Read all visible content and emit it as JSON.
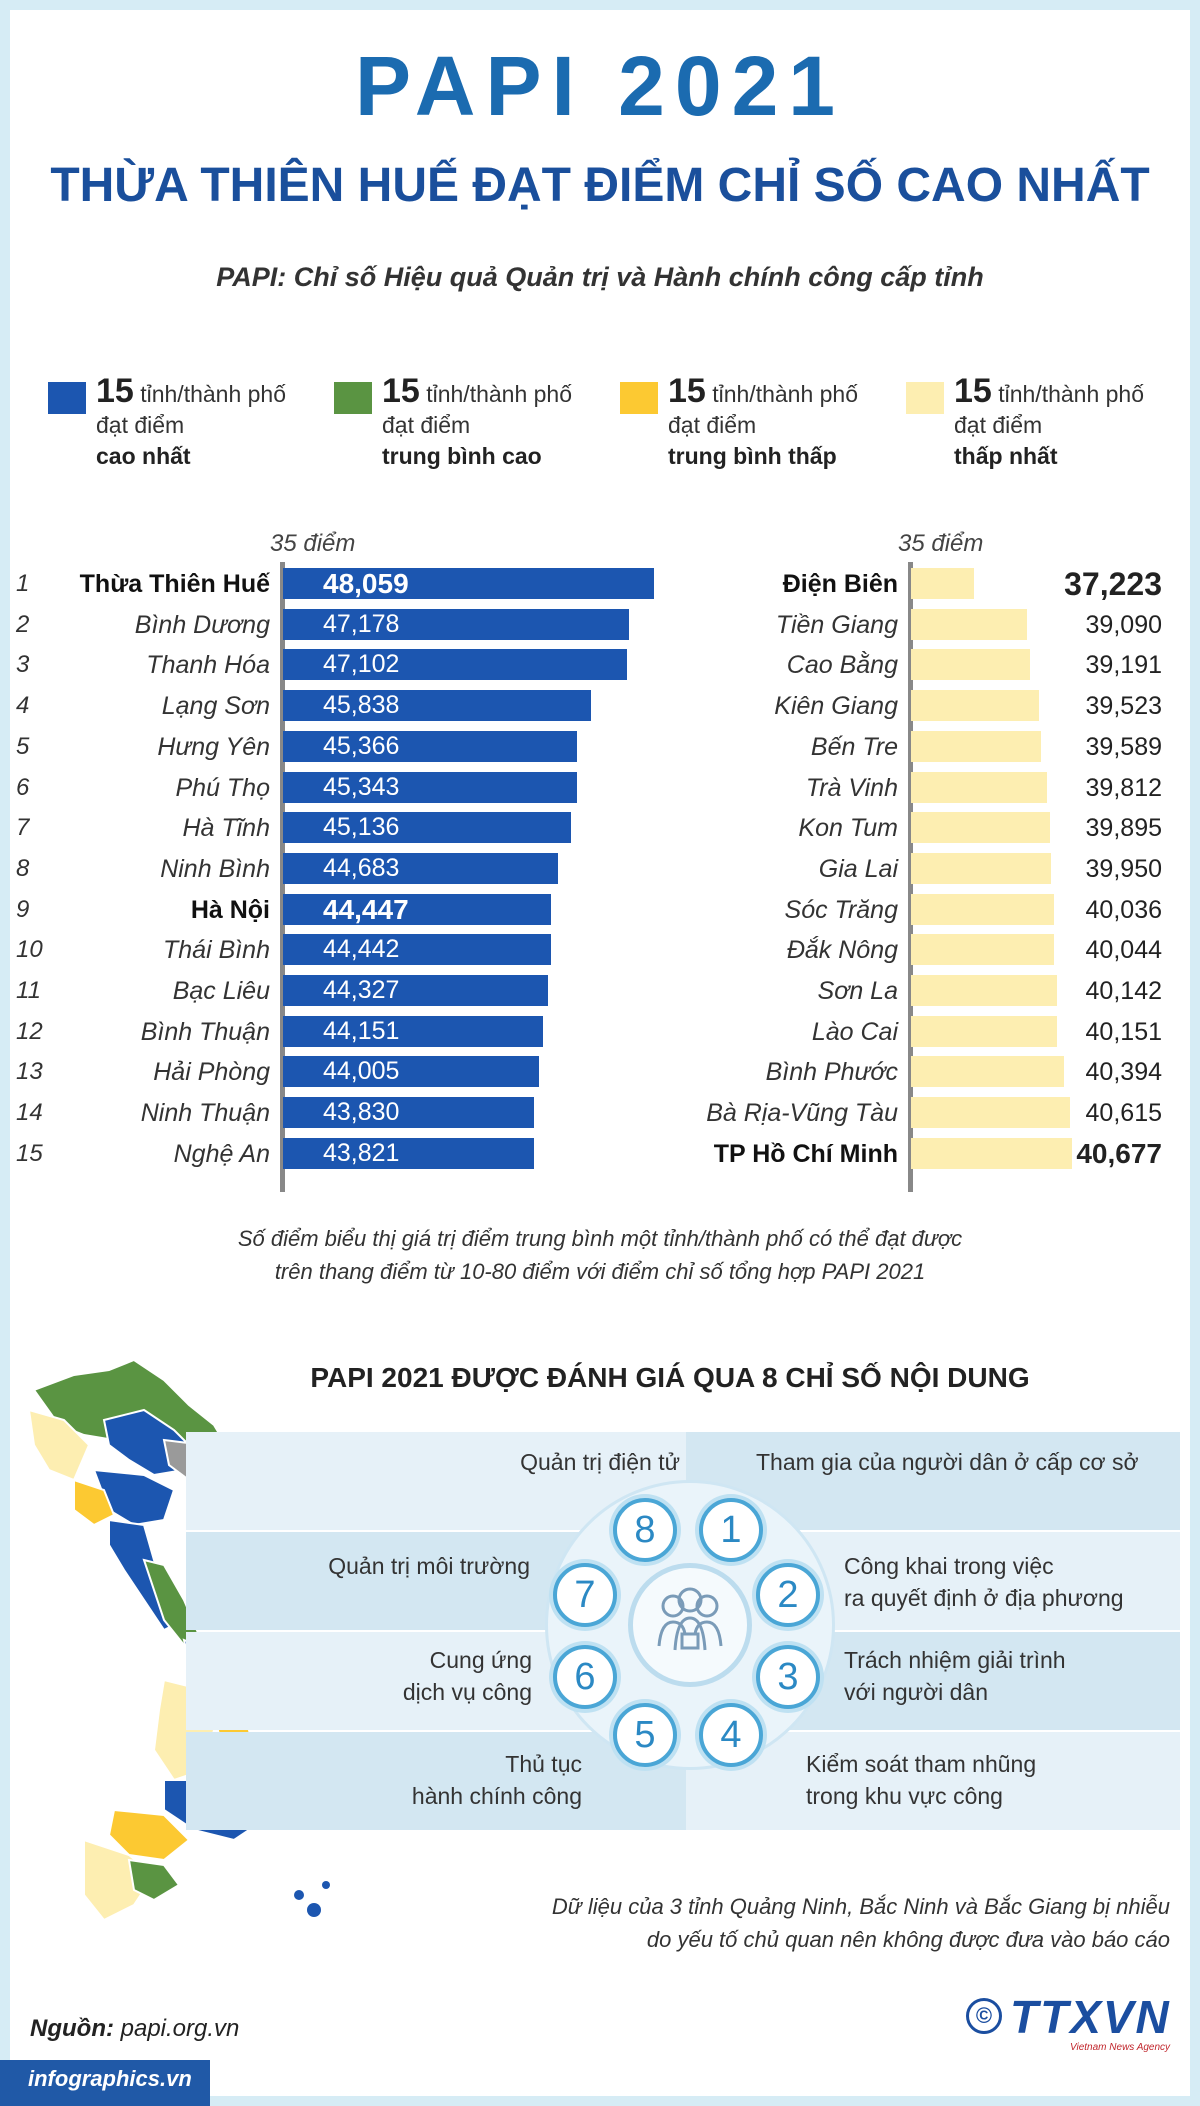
{
  "header": {
    "title": "PAPI 2021",
    "subtitle": "THỪA THIÊN HUẾ ĐẠT ĐIỂM CHỈ SỐ CAO NHẤT",
    "tagline": "PAPI: Chỉ số Hiệu quả Quản trị và Hành chính công cấp tỉnh"
  },
  "legend": [
    {
      "num": "15",
      "unit": " tỉnh/thành phố",
      "line2": "đạt điểm",
      "desc": "cao nhất",
      "color": "#1c56b0"
    },
    {
      "num": "15",
      "unit": " tỉnh/thành phố",
      "line2": "đạt điểm",
      "desc": "trung bình cao",
      "color": "#5a9442"
    },
    {
      "num": "15",
      "unit": " tỉnh/thành phố",
      "line2": "đạt điểm",
      "desc": "trung bình thấp",
      "color": "#fcc932"
    },
    {
      "num": "15",
      "unit": " tỉnh/thành phố",
      "line2": "đạt điểm",
      "desc": "thấp nhất",
      "color": "#fdeeb1"
    }
  ],
  "axis_label": {
    "num": "35",
    "unit": " điểm"
  },
  "chart_data": [
    {
      "type": "bar",
      "orientation": "horizontal",
      "axis_min": 35,
      "axis_label": "35 điểm",
      "bar_color": "#1c56b0",
      "ranks": [
        "1",
        "2",
        "3",
        "4",
        "5",
        "6",
        "7",
        "8",
        "9",
        "10",
        "11",
        "12",
        "13",
        "14",
        "15"
      ],
      "categories": [
        "Thừa Thiên Huế",
        "Bình Dương",
        "Thanh Hóa",
        "Lạng Sơn",
        "Hưng Yên",
        "Phú Thọ",
        "Hà Tĩnh",
        "Ninh Bình",
        "Hà Nội",
        "Thái Bình",
        "Bạc Liêu",
        "Bình Thuận",
        "Hải Phòng",
        "Ninh Thuận",
        "Nghệ An"
      ],
      "values": [
        48.059,
        47.178,
        47.102,
        45.838,
        45.366,
        45.343,
        45.136,
        44.683,
        44.447,
        44.442,
        44.327,
        44.151,
        44.005,
        43.83,
        43.821
      ],
      "labels": [
        "48,059",
        "47,178",
        "47,102",
        "45,838",
        "45,366",
        "45,343",
        "45,136",
        "44,683",
        "44,447",
        "44,442",
        "44,327",
        "44,151",
        "44,005",
        "43,830",
        "43,821"
      ],
      "highlight": [
        0,
        8
      ]
    },
    {
      "type": "bar",
      "orientation": "horizontal",
      "axis_min": 35,
      "axis_label": "35 điểm",
      "bar_color": "#fdeeb1",
      "categories": [
        "Điện Biên",
        "Tiền Giang",
        "Cao Bằng",
        "Kiên Giang",
        "Bến Tre",
        "Trà Vinh",
        "Kon Tum",
        "Gia Lai",
        "Sóc Trăng",
        "Đắk Nông",
        "Sơn La",
        "Lào Cai",
        "Bình Phước",
        "Bà Rịa-Vũng Tàu",
        "TP Hồ Chí Minh"
      ],
      "values": [
        37.223,
        39.09,
        39.191,
        39.523,
        39.589,
        39.812,
        39.895,
        39.95,
        40.036,
        40.044,
        40.142,
        40.151,
        40.394,
        40.615,
        40.677
      ],
      "labels": [
        "37,223",
        "39,090",
        "39,191",
        "39,523",
        "39,589",
        "39,812",
        "39,895",
        "39,950",
        "40,036",
        "40,044",
        "40,142",
        "40,151",
        "40,394",
        "40,615",
        "40,677"
      ],
      "highlight": [
        0,
        14
      ]
    }
  ],
  "note": {
    "line1": "Số điểm biểu thị giá trị điểm trung bình một tỉnh/thành phố có thể đạt được",
    "line2": "trên thang điểm từ 10-80 điểm với điểm chỉ số tổng hợp PAPI 2021"
  },
  "indicators": {
    "title": "PAPI 2021 ĐƯỢC ĐÁNH GIÁ QUA 8 CHỈ SỐ NỘI DUNG",
    "items": [
      {
        "n": "1",
        "l1": "Tham gia của người dân ở cấp cơ sở",
        "l2": ""
      },
      {
        "n": "2",
        "l1": "Công khai trong việc",
        "l2": "ra quyết định ở địa phương"
      },
      {
        "n": "3",
        "l1": "Trách nhiệm giải trình",
        "l2": "với người dân"
      },
      {
        "n": "4",
        "l1": "Kiểm soát tham nhũng",
        "l2": "trong khu vực công"
      },
      {
        "n": "5",
        "l1": "Thủ tục",
        "l2": "hành chính công"
      },
      {
        "n": "6",
        "l1": "Cung ứng",
        "l2": "dịch vụ công"
      },
      {
        "n": "7",
        "l1": "Quản trị môi trường",
        "l2": ""
      },
      {
        "n": "8",
        "l1": "Quản trị điện tử",
        "l2": ""
      }
    ]
  },
  "footnote": {
    "line1": "Dữ liệu của 3 tỉnh Quảng Ninh, Bắc Ninh và Bắc Giang bị nhiễu",
    "line2": "do yếu tố chủ quan nên không được đưa vào báo cáo"
  },
  "footer": {
    "source_label": "Nguồn:",
    "source_value": " papi.org.vn",
    "site": "infographics.vn",
    "copyright": "©",
    "logo": "TTXVN",
    "logo_sub": "Vietnam News Agency"
  },
  "map_colors": {
    "blue": "#1c56b0",
    "green": "#5a9442",
    "yellow": "#fcc932",
    "cream": "#fdeeb1",
    "grey": "#9a9a9a"
  }
}
